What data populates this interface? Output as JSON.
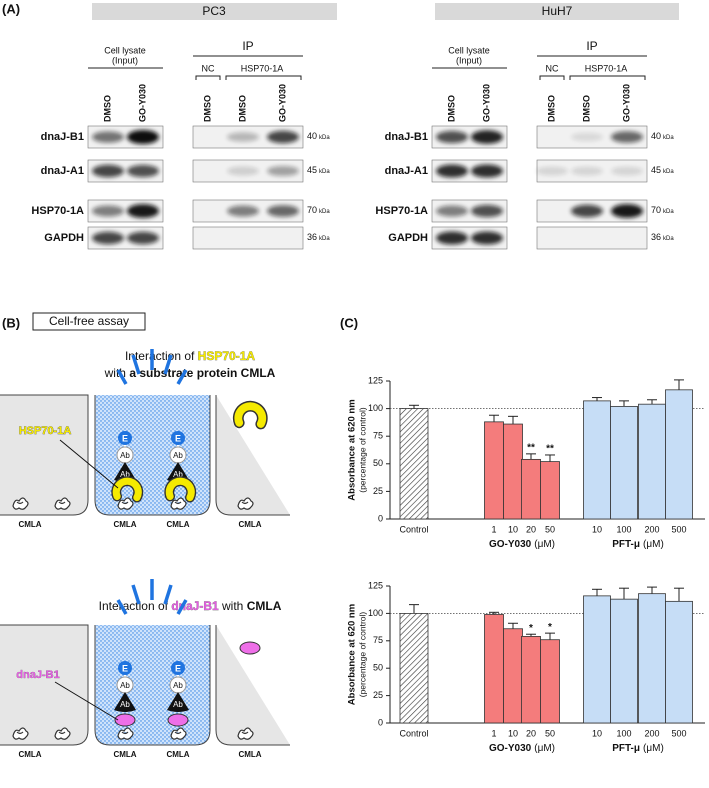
{
  "panel_a": {
    "label": "(A)",
    "cell_lines": [
      "PC3",
      "HuH7"
    ],
    "input_header": [
      "Cell lysate",
      "(Input)"
    ],
    "ip_header": "IP",
    "ip_groups": [
      "NC",
      "HSP70-1A"
    ],
    "input_lanes": [
      "DMSO",
      "GO-Y030"
    ],
    "ip_lanes": [
      "DMSO",
      "DMSO",
      "GO-Y030"
    ],
    "proteins": [
      {
        "name": "dnaJ-B1",
        "mw": 40,
        "unit": "kDa"
      },
      {
        "name": "dnaJ-A1",
        "mw": 45,
        "unit": "kDa"
      },
      {
        "name": "HSP70-1A",
        "mw": 70,
        "unit": "kDa"
      },
      {
        "name": "GAPDH",
        "mw": 36,
        "unit": "kDa"
      }
    ]
  },
  "panel_b": {
    "label": "(B)",
    "assay": "Cell-free assay",
    "top_title": [
      "Interaction of",
      "HSP70-1A",
      "with",
      "a substrate protein CMLA"
    ],
    "top_protein": "HSP70-1A",
    "bottom_title": [
      "Interaction of",
      "dnaJ-B1",
      "with",
      "CMLA"
    ],
    "bottom_protein": "dnaJ-B1",
    "substrate": "CMLA",
    "enzyme": "E",
    "antibody": "Ab"
  },
  "panel_c": {
    "label": "(C)"
  },
  "chart_data": [
    {
      "type": "bar",
      "y_label": "Absorbance at 620 nm",
      "y_sublabel": "(percentage of control)",
      "categories": [
        "Control",
        "1",
        "10",
        "20",
        "50",
        "10",
        "100",
        "200",
        "500"
      ],
      "values": [
        100,
        88,
        86,
        54,
        52,
        107,
        102,
        104,
        117
      ],
      "errors": [
        3,
        6,
        7,
        5,
        6,
        3,
        5,
        4,
        9
      ],
      "colors": [
        "#ffffff",
        "#f47c7c",
        "#f47c7c",
        "#f47c7c",
        "#f47c7c",
        "#c6ddf6",
        "#c6ddf6",
        "#c6ddf6",
        "#c6ddf6"
      ],
      "hatched": [
        true,
        false,
        false,
        false,
        false,
        false,
        false,
        false,
        false
      ],
      "significance": [
        null,
        null,
        null,
        "**",
        "**",
        null,
        null,
        null,
        null
      ],
      "groups": [
        {
          "name": "GO-Y030",
          "unit": "(μM)"
        },
        {
          "name": "PFT-μ",
          "unit": "(μM)"
        }
      ],
      "reference_line": 100,
      "ylim": [
        0,
        125
      ],
      "yticks": [
        0,
        25,
        50,
        75,
        100,
        125
      ]
    },
    {
      "type": "bar",
      "y_label": "Absorbance at 620 nm",
      "y_sublabel": "(percentage of control)",
      "categories": [
        "Control",
        "1",
        "10",
        "20",
        "50",
        "10",
        "100",
        "200",
        "500"
      ],
      "values": [
        100,
        99,
        86,
        79,
        76,
        116,
        113,
        118,
        111
      ],
      "errors": [
        8,
        2,
        5,
        2,
        6,
        6,
        10,
        6,
        12
      ],
      "colors": [
        "#ffffff",
        "#f47c7c",
        "#f47c7c",
        "#f47c7c",
        "#f47c7c",
        "#c6ddf6",
        "#c6ddf6",
        "#c6ddf6",
        "#c6ddf6"
      ],
      "hatched": [
        true,
        false,
        false,
        false,
        false,
        false,
        false,
        false,
        false
      ],
      "significance": [
        null,
        null,
        null,
        "*",
        "*",
        null,
        null,
        null,
        null
      ],
      "groups": [
        {
          "name": "GO-Y030",
          "unit": "(μM)"
        },
        {
          "name": "PFT-μ",
          "unit": "(μM)"
        }
      ],
      "reference_line": 100,
      "ylim": [
        0,
        125
      ],
      "yticks": [
        0,
        25,
        50,
        75,
        100,
        125
      ]
    }
  ]
}
